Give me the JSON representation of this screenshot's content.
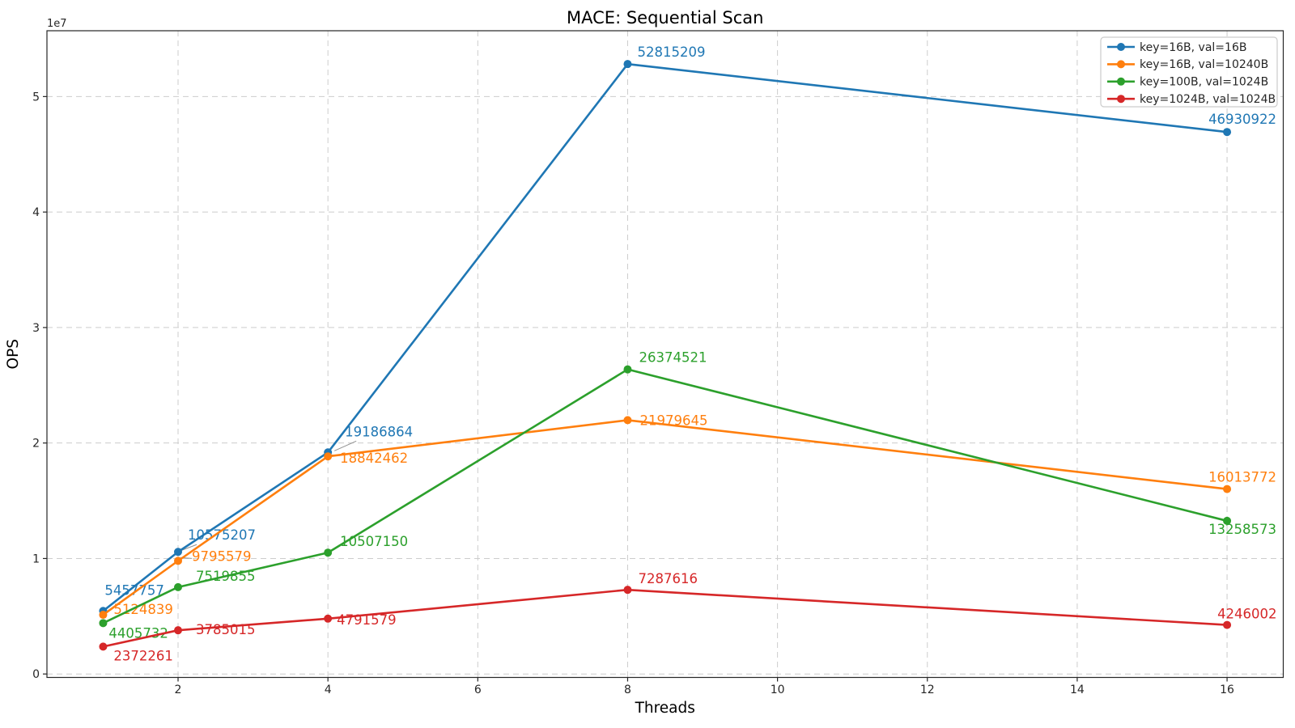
{
  "chart_data": {
    "type": "line",
    "title": "MACE: Sequential Scan",
    "xlabel": "Threads",
    "ylabel": "OPS",
    "y_offset_label": "1e7",
    "x": [
      1,
      2,
      4,
      8,
      16
    ],
    "xticks": [
      2,
      4,
      6,
      8,
      10,
      12,
      14,
      16
    ],
    "yticks": [
      0,
      10000000,
      20000000,
      30000000,
      40000000,
      50000000
    ],
    "ytick_labels": [
      "0",
      "1",
      "2",
      "3",
      "4",
      "5"
    ],
    "xlim": [
      0.25,
      16.75
    ],
    "ylim": [
      -300000,
      55700000
    ],
    "grid": true,
    "legend_position": "upper right",
    "axis_color": "#262626",
    "grid_color": "#cccccc",
    "leader_color": "#909090",
    "series": [
      {
        "name": "key=16B, val=16B",
        "color": "#1f77b4",
        "values": [
          5457757,
          10575207,
          19186864,
          52815209,
          46930922
        ],
        "label_offsets": [
          [
            2,
            -20
          ],
          [
            12,
            -15
          ],
          [
            21,
            -20
          ],
          [
            12,
            -9
          ],
          [
            -23,
            -10
          ]
        ]
      },
      {
        "name": "key=16B, val=10240B",
        "color": "#ff7f0e",
        "values": [
          5124839,
          9795579,
          18842462,
          21979645,
          16013772
        ],
        "label_offsets": [
          [
            13,
            -1
          ],
          [
            17,
            0
          ],
          [
            15,
            8
          ],
          [
            15,
            6
          ],
          [
            -23,
            -9
          ]
        ]
      },
      {
        "name": "key=100B, val=1024B",
        "color": "#2ca02c",
        "values": [
          4405732,
          7519855,
          10507150,
          26374521,
          13258573
        ],
        "label_offsets": [
          [
            7,
            18
          ],
          [
            22,
            -8
          ],
          [
            15,
            -8
          ],
          [
            14,
            -9
          ],
          [
            -23,
            16
          ]
        ]
      },
      {
        "name": "key=1024B, val=1024B",
        "color": "#d62728",
        "values": [
          2372261,
          3785015,
          4791579,
          7287616,
          4246002
        ],
        "label_offsets": [
          [
            13,
            17
          ],
          [
            22,
            5
          ],
          [
            11,
            7
          ],
          [
            13,
            -8
          ],
          [
            -12,
            -8
          ]
        ]
      }
    ],
    "leader_lines": [
      {
        "series": 0,
        "point": 1,
        "from": [
          2,
          -1
        ],
        "to": [
          23,
          -9
        ]
      },
      {
        "series": 1,
        "point": 1,
        "from": [
          3,
          -4
        ],
        "to": [
          17,
          -3
        ]
      },
      {
        "series": 0,
        "point": 2,
        "from": [
          8,
          -2
        ],
        "to": [
          35,
          -14
        ]
      },
      {
        "series": 1,
        "point": 2,
        "from": [
          2,
          -2
        ],
        "to": [
          15,
          -1
        ]
      }
    ]
  }
}
